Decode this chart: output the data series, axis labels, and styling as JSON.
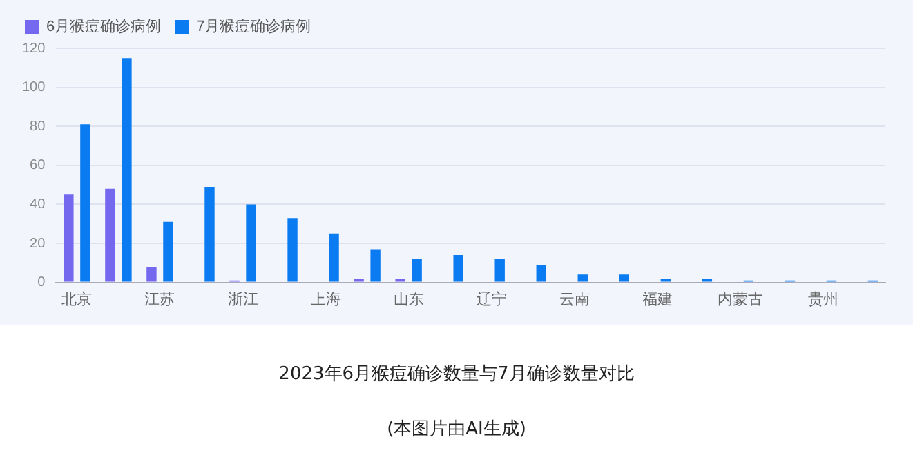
{
  "chart_data": {
    "type": "bar",
    "title": "2023年6月猴痘确诊数量与7月确诊数量对比",
    "annotations": [
      "(本图片由AI生成)"
    ],
    "categories": [
      "北京",
      null,
      "江苏",
      null,
      "浙江",
      null,
      "上海",
      null,
      "山东",
      null,
      "辽宁",
      null,
      "云南",
      null,
      "福建",
      null,
      "内蒙古",
      null,
      "贵州",
      null
    ],
    "series": [
      {
        "name": "6月猴痘确诊病例",
        "color": "#7468ee",
        "values": [
          45,
          48,
          8,
          0,
          1,
          0,
          0,
          2,
          2,
          0,
          0,
          0,
          0,
          0,
          0,
          0,
          0,
          0,
          0,
          0
        ]
      },
      {
        "name": "7月猴痘确诊病例",
        "color": "#0a7bf0",
        "values": [
          81,
          115,
          31,
          49,
          40,
          33,
          25,
          17,
          12,
          14,
          12,
          9,
          4,
          4,
          2,
          2,
          1,
          1,
          1,
          1
        ]
      }
    ],
    "ylim": [
      0,
      120
    ],
    "yticks": [
      0,
      20,
      40,
      60,
      80,
      100,
      120
    ],
    "grid": "y",
    "legend": "top left"
  }
}
